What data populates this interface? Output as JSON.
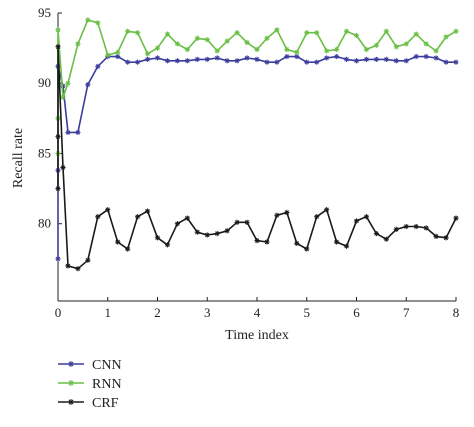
{
  "chart_data": {
    "type": "line",
    "title": "",
    "xlabel": "Time index",
    "ylabel": "Recall rate",
    "xlim": [
      0,
      8
    ],
    "ylim": [
      74.5,
      95
    ],
    "xticks": [
      0,
      1,
      2,
      3,
      4,
      5,
      6,
      7,
      8
    ],
    "yticks": [
      80,
      85,
      90,
      95
    ],
    "grid": false,
    "legend_position": "below-left",
    "series": [
      {
        "name": "CNN",
        "color": "#3b3c9c",
        "marker": "asterisk",
        "points": [
          [
            0,
            77.5
          ],
          [
            0,
            83.8
          ],
          [
            0,
            91.2
          ],
          [
            0.1,
            89.8
          ],
          [
            0.2,
            86.5
          ],
          [
            0.4,
            86.5
          ],
          [
            0.6,
            89.9
          ],
          [
            0.8,
            91.2
          ],
          [
            1.0,
            91.9
          ],
          [
            1.2,
            91.9
          ],
          [
            1.4,
            91.5
          ],
          [
            1.6,
            91.5
          ],
          [
            1.8,
            91.7
          ],
          [
            2.0,
            91.8
          ],
          [
            2.2,
            91.6
          ],
          [
            2.4,
            91.6
          ],
          [
            2.6,
            91.6
          ],
          [
            2.8,
            91.7
          ],
          [
            3.0,
            91.7
          ],
          [
            3.2,
            91.8
          ],
          [
            3.4,
            91.6
          ],
          [
            3.6,
            91.6
          ],
          [
            3.8,
            91.8
          ],
          [
            4.0,
            91.7
          ],
          [
            4.2,
            91.5
          ],
          [
            4.4,
            91.5
          ],
          [
            4.6,
            91.9
          ],
          [
            4.8,
            91.9
          ],
          [
            5.0,
            91.5
          ],
          [
            5.2,
            91.5
          ],
          [
            5.4,
            91.8
          ],
          [
            5.6,
            91.9
          ],
          [
            5.8,
            91.7
          ],
          [
            6.0,
            91.6
          ],
          [
            6.2,
            91.7
          ],
          [
            6.4,
            91.7
          ],
          [
            6.6,
            91.7
          ],
          [
            6.8,
            91.6
          ],
          [
            7.0,
            91.6
          ],
          [
            7.2,
            91.9
          ],
          [
            7.4,
            91.9
          ],
          [
            7.6,
            91.8
          ],
          [
            7.8,
            91.5
          ],
          [
            8.0,
            91.5
          ]
        ]
      },
      {
        "name": "RNN",
        "color": "#6abf45",
        "marker": "asterisk",
        "points": [
          [
            0,
            85.0
          ],
          [
            0,
            87.5
          ],
          [
            0,
            93.8
          ],
          [
            0.1,
            89.0
          ],
          [
            0.2,
            90.0
          ],
          [
            0.4,
            92.8
          ],
          [
            0.6,
            94.5
          ],
          [
            0.8,
            94.3
          ],
          [
            1.0,
            92.0
          ],
          [
            1.2,
            92.2
          ],
          [
            1.4,
            93.7
          ],
          [
            1.6,
            93.6
          ],
          [
            1.8,
            92.1
          ],
          [
            2.0,
            92.5
          ],
          [
            2.2,
            93.5
          ],
          [
            2.4,
            92.8
          ],
          [
            2.6,
            92.4
          ],
          [
            2.8,
            93.2
          ],
          [
            3.0,
            93.1
          ],
          [
            3.2,
            92.3
          ],
          [
            3.4,
            93.0
          ],
          [
            3.6,
            93.6
          ],
          [
            3.8,
            92.9
          ],
          [
            4.0,
            92.4
          ],
          [
            4.2,
            93.2
          ],
          [
            4.4,
            93.8
          ],
          [
            4.6,
            92.4
          ],
          [
            4.8,
            92.2
          ],
          [
            5.0,
            93.6
          ],
          [
            5.2,
            93.6
          ],
          [
            5.4,
            92.3
          ],
          [
            5.6,
            92.4
          ],
          [
            5.8,
            93.7
          ],
          [
            6.0,
            93.4
          ],
          [
            6.2,
            92.4
          ],
          [
            6.4,
            92.7
          ],
          [
            6.6,
            93.7
          ],
          [
            6.8,
            92.6
          ],
          [
            7.0,
            92.8
          ],
          [
            7.2,
            93.5
          ],
          [
            7.4,
            92.8
          ],
          [
            7.6,
            92.3
          ],
          [
            7.8,
            93.3
          ],
          [
            8.0,
            93.7
          ]
        ]
      },
      {
        "name": "CRF",
        "color": "#1a1a1a",
        "marker": "asterisk",
        "points": [
          [
            0,
            82.5
          ],
          [
            0,
            86.2
          ],
          [
            0,
            92.6
          ],
          [
            0.1,
            84.0
          ],
          [
            0.2,
            77.0
          ],
          [
            0.4,
            76.8
          ],
          [
            0.6,
            77.4
          ],
          [
            0.8,
            80.5
          ],
          [
            1.0,
            81.0
          ],
          [
            1.2,
            78.7
          ],
          [
            1.4,
            78.2
          ],
          [
            1.6,
            80.5
          ],
          [
            1.8,
            80.9
          ],
          [
            2.0,
            79.0
          ],
          [
            2.2,
            78.5
          ],
          [
            2.4,
            80.0
          ],
          [
            2.6,
            80.4
          ],
          [
            2.8,
            79.4
          ],
          [
            3.0,
            79.2
          ],
          [
            3.2,
            79.3
          ],
          [
            3.4,
            79.5
          ],
          [
            3.6,
            80.1
          ],
          [
            3.8,
            80.1
          ],
          [
            4.0,
            78.8
          ],
          [
            4.2,
            78.7
          ],
          [
            4.4,
            80.6
          ],
          [
            4.6,
            80.8
          ],
          [
            4.8,
            78.6
          ],
          [
            5.0,
            78.2
          ],
          [
            5.2,
            80.5
          ],
          [
            5.4,
            81.0
          ],
          [
            5.6,
            78.7
          ],
          [
            5.8,
            78.4
          ],
          [
            6.0,
            80.2
          ],
          [
            6.2,
            80.5
          ],
          [
            6.4,
            79.3
          ],
          [
            6.6,
            78.9
          ],
          [
            6.8,
            79.6
          ],
          [
            7.0,
            79.8
          ],
          [
            7.2,
            79.8
          ],
          [
            7.4,
            79.7
          ],
          [
            7.6,
            79.1
          ],
          [
            7.8,
            79.0
          ],
          [
            8.0,
            80.4
          ]
        ]
      }
    ]
  }
}
